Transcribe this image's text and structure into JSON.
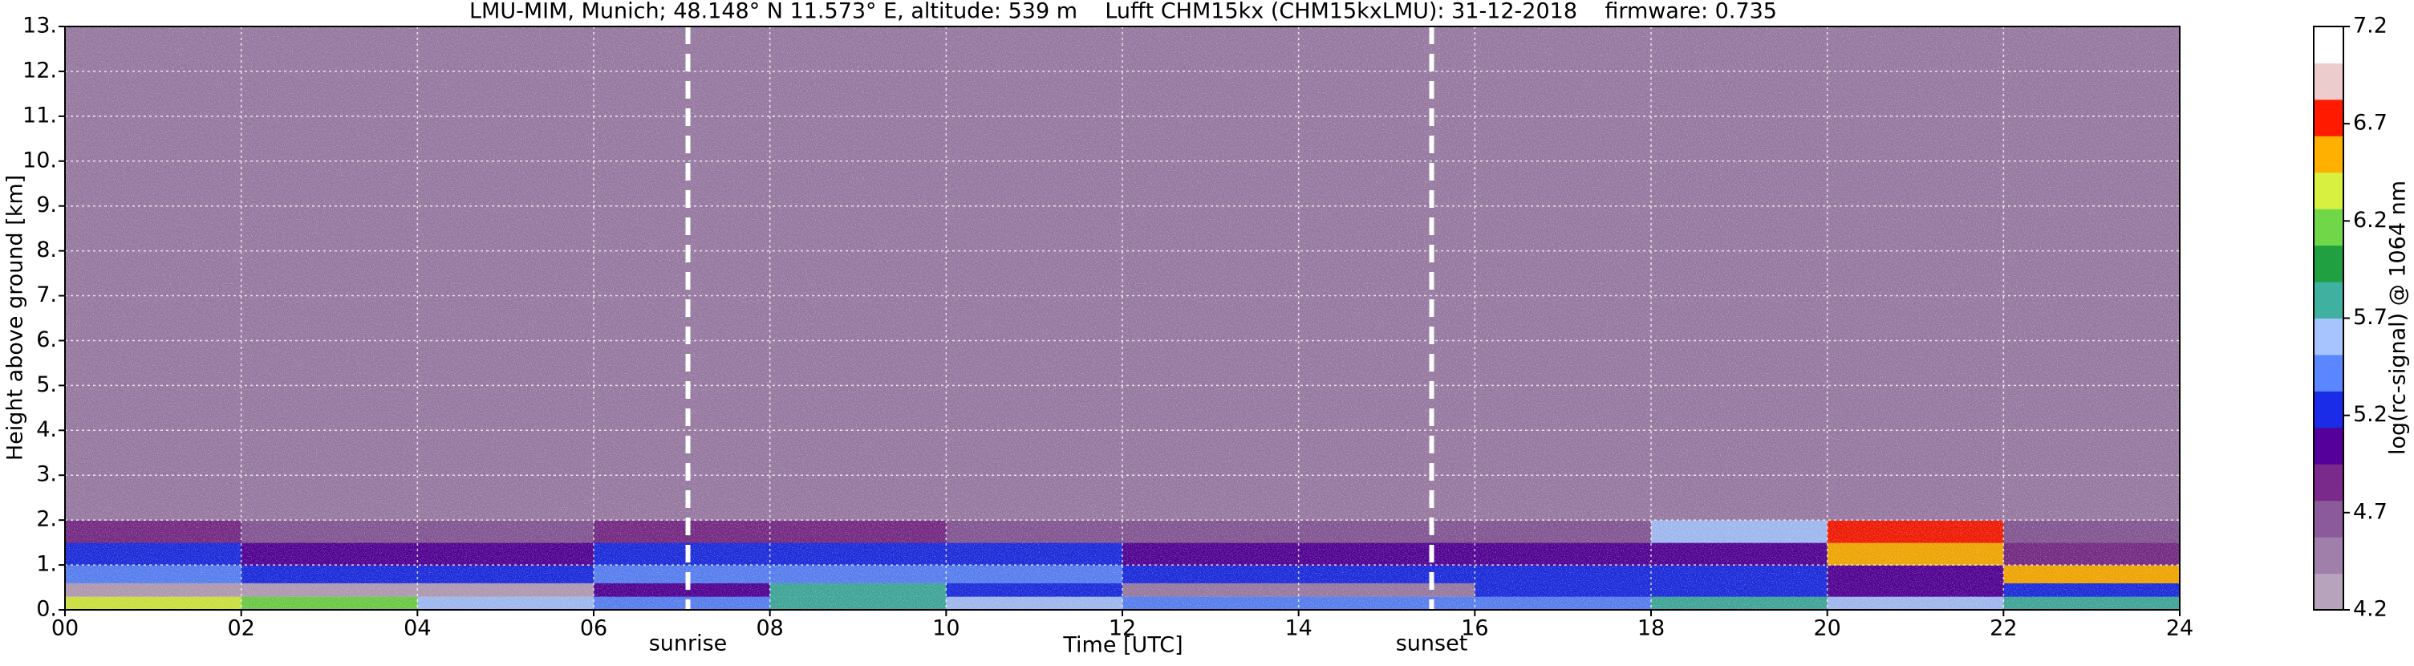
{
  "chart_data": {
    "type": "heatmap",
    "title": "LMU-MIM, Munich; 48.148° N 11.573° E, altitude: 539 m    Lufft CHM15kx (CHM15kxLMU): 31-12-2018    firmware: 0.735",
    "xlabel": "Time [UTC]",
    "ylabel": "Height above ground [km]",
    "colorbar_label": "log(rc-signal) @ 1064 nm",
    "xlim": [
      0,
      24
    ],
    "ylim": [
      0,
      13
    ],
    "xticks": [
      {
        "value": 0,
        "label": "00"
      },
      {
        "value": 2,
        "label": "02"
      },
      {
        "value": 4,
        "label": "04"
      },
      {
        "value": 6,
        "label": "06"
      },
      {
        "value": 8,
        "label": "08"
      },
      {
        "value": 10,
        "label": "10"
      },
      {
        "value": 12,
        "label": "12"
      },
      {
        "value": 14,
        "label": "14"
      },
      {
        "value": 16,
        "label": "16"
      },
      {
        "value": 18,
        "label": "18"
      },
      {
        "value": 20,
        "label": "20"
      },
      {
        "value": 22,
        "label": "22"
      },
      {
        "value": 24,
        "label": "24"
      }
    ],
    "yticks": [
      {
        "value": 0,
        "label": "0."
      },
      {
        "value": 1,
        "label": "1."
      },
      {
        "value": 2,
        "label": "2."
      },
      {
        "value": 3,
        "label": "3."
      },
      {
        "value": 4,
        "label": "4."
      },
      {
        "value": 5,
        "label": "5."
      },
      {
        "value": 6,
        "label": "6."
      },
      {
        "value": 7,
        "label": "7."
      },
      {
        "value": 8,
        "label": "8."
      },
      {
        "value": 9,
        "label": "9."
      },
      {
        "value": 10,
        "label": "10."
      },
      {
        "value": 11,
        "label": "11."
      },
      {
        "value": 12,
        "label": "12."
      },
      {
        "value": 13,
        "label": "13."
      }
    ],
    "grid": true,
    "x_edges": [
      0,
      2,
      4,
      6,
      8,
      10,
      12,
      14,
      16,
      18,
      20,
      22,
      24
    ],
    "y_edges": [
      0,
      0.3,
      0.6,
      1.0,
      1.5,
      2.0,
      3.0,
      13.0
    ],
    "z": [
      [
        6.4,
        6.2,
        5.6,
        5.4,
        5.8,
        5.6,
        5.5,
        5.4,
        5.4,
        5.8,
        5.6,
        5.8
      ],
      [
        4.3,
        4.3,
        4.3,
        5.0,
        5.8,
        5.3,
        4.5,
        4.4,
        5.2,
        5.2,
        5.0,
        5.3
      ],
      [
        5.4,
        5.3,
        5.3,
        5.4,
        5.5,
        5.4,
        5.3,
        5.2,
        5.2,
        5.2,
        5.0,
        6.6
      ],
      [
        5.2,
        5.1,
        5.1,
        5.2,
        5.2,
        5.2,
        5.1,
        5.0,
        5.0,
        5.0,
        6.6,
        4.9
      ],
      [
        4.8,
        4.7,
        4.7,
        4.8,
        4.8,
        4.7,
        4.6,
        4.7,
        4.7,
        5.6,
        6.8,
        4.7
      ],
      [
        4.4,
        4.4,
        4.4,
        4.4,
        4.4,
        4.4,
        4.4,
        4.4,
        4.4,
        4.4,
        4.4,
        4.4
      ],
      [
        4.5,
        4.5,
        4.5,
        4.5,
        4.5,
        4.5,
        4.5,
        4.5,
        4.5,
        4.5,
        4.5,
        4.5
      ]
    ],
    "zlim": [
      4.2,
      7.2
    ],
    "zticks": [
      4.2,
      4.7,
      5.2,
      5.7,
      6.2,
      6.7,
      7.2
    ],
    "colors": [
      "#b8a3bc",
      "#a080aa",
      "#8a5a9a",
      "#7a2a8a",
      "#55009a",
      "#1a2ce8",
      "#5a86ff",
      "#a8c4ff",
      "#40b0a0",
      "#20a040",
      "#70d848",
      "#d8f040",
      "#ffb000",
      "#ff1a00",
      "#eccccc",
      "#ffffff"
    ],
    "annotations": [
      {
        "text": "sunrise",
        "x": 7.07
      },
      {
        "text": "sunset",
        "x": 15.51
      }
    ]
  }
}
